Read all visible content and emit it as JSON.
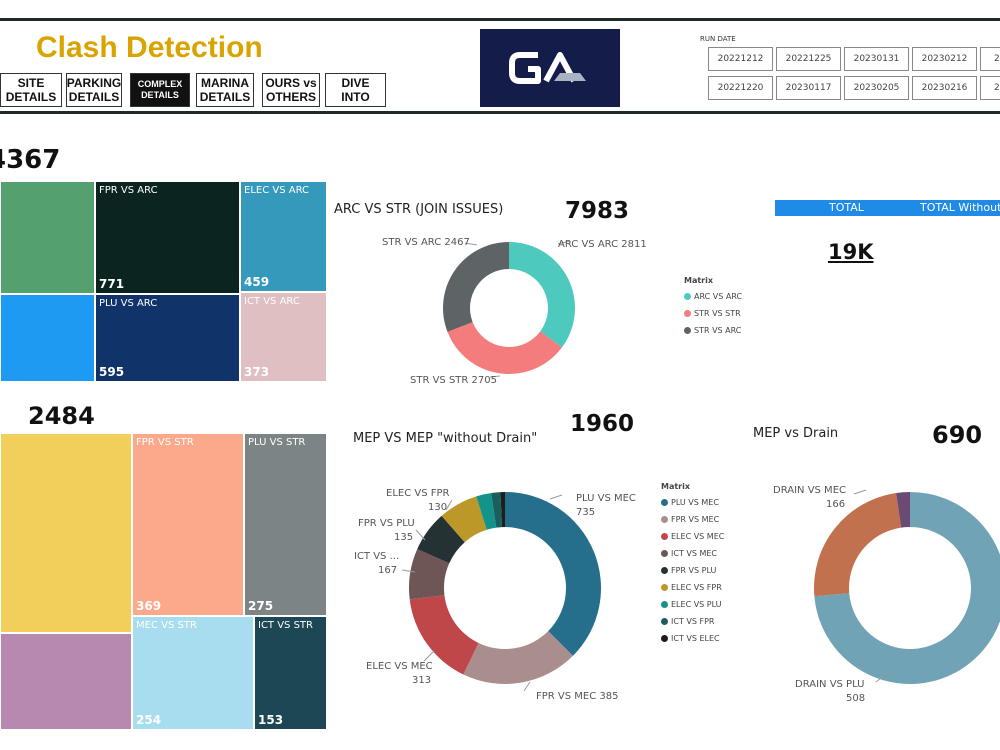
{
  "header": {
    "title": "Clash Detection",
    "nav": [
      {
        "line1": "SITE",
        "line2": "DETAILS",
        "active": false
      },
      {
        "line1": "PARKING",
        "line2": "DETAILS",
        "active": false
      },
      {
        "line1": "COMPLEX",
        "line2": "DETAILS",
        "active": true
      },
      {
        "line1": "MARINA",
        "line2": "DETAILS",
        "active": false
      },
      {
        "line1": "OURS vs",
        "line2": "OTHERS",
        "active": false
      },
      {
        "line1": "DIVE INTO",
        "line2": "",
        "active": false
      }
    ],
    "logo_text": "GA",
    "run_date_label": "RUN DATE",
    "run_dates_row1": [
      "20221212",
      "20221225",
      "20230131",
      "20230212",
      "2"
    ],
    "run_dates_row2": [
      "20221220",
      "20230117",
      "20230205",
      "20230216",
      "2"
    ]
  },
  "arc_section": {
    "total": "4367",
    "treemap": [
      {
        "label": "",
        "value": "",
        "color": "#55a06f"
      },
      {
        "label": "FPR VS ARC",
        "value": "771",
        "color": "#0c2420"
      },
      {
        "label": "ELEC VS ARC",
        "value": "459",
        "color": "#3599bb"
      },
      {
        "label": "",
        "value": "",
        "color": "#1f9af3"
      },
      {
        "label": "PLU VS ARC",
        "value": "595",
        "color": "#10336a"
      },
      {
        "label": "ICT VS ARC",
        "value": "373",
        "color": "#dfbfc1"
      }
    ]
  },
  "str_section": {
    "total": "2484",
    "treemap": [
      {
        "label": "",
        "value": "",
        "color": "#f2cf5a"
      },
      {
        "label": "FPR VS STR",
        "value": "369",
        "color": "#fba98a"
      },
      {
        "label": "PLU VS STR",
        "value": "275",
        "color": "#7d8486"
      },
      {
        "label": "",
        "value": "",
        "color": "#b789b0"
      },
      {
        "label": "MEC VS STR",
        "value": "254",
        "color": "#a7ddee"
      },
      {
        "label": "ICT VS STR",
        "value": "153",
        "color": "#1d4755"
      }
    ]
  },
  "arc_vs_str": {
    "title": "ARC VS STR (JOIN ISSUES)",
    "total": "7983",
    "legend_title": "Matrix",
    "legend": [
      "ARC VS  ARC",
      "STR VS  STR",
      "STR VS  ARC"
    ]
  },
  "totals": {
    "header_left": "TOTAL",
    "header_right": "TOTAL Without",
    "value": "19K"
  },
  "mep_vs_mep": {
    "title": "MEP VS MEP \"without Drain\"",
    "total": "1960",
    "legend_title": "Matrix",
    "legend": [
      "PLU VS  MEC",
      "FPR VS  MEC",
      "ELEC VS  MEC",
      "ICT VS  MEC",
      "FPR VS  PLU",
      "ELEC VS  FPR",
      "ELEC VS  PLU",
      "ICT VS  FPR",
      "ICT VS  ELEC"
    ]
  },
  "mep_vs_drain": {
    "title": "MEP vs Drain",
    "total": "690"
  },
  "colors": {
    "accent_title": "#d9a400",
    "total_bar": "#1f8be6"
  },
  "chart_data": [
    {
      "type": "pie",
      "title": "ARC VS STR (JOIN ISSUES)",
      "categories": [
        "ARC VS ARC",
        "STR VS STR",
        "STR VS ARC"
      ],
      "values": [
        2811,
        2705,
        2467
      ],
      "colors": [
        "#4ec9bd",
        "#f47c7c",
        "#5e6466"
      ]
    },
    {
      "type": "pie",
      "title": "MEP VS MEP \"without Drain\"",
      "categories": [
        "PLU VS MEC",
        "FPR VS MEC",
        "ELEC VS MEC",
        "ICT VS ...",
        "FPR VS PLU",
        "ELEC VS FPR",
        "ELEC VS PLU",
        "ICT VS FPR",
        "ICT VS ELEC"
      ],
      "values": [
        735,
        385,
        313,
        167,
        135,
        130,
        50,
        30,
        15
      ],
      "colors": [
        "#256f8c",
        "#aa8e8e",
        "#c04749",
        "#6e5656",
        "#253234",
        "#bc9829",
        "#13938a",
        "#1a5e5e",
        "#1d1d1d"
      ]
    },
    {
      "type": "pie",
      "title": "MEP vs Drain",
      "categories": [
        "DRAIN VS PLU",
        "DRAIN VS MEC",
        ""
      ],
      "values": [
        508,
        166,
        16
      ],
      "colors": [
        "#6fa3b5",
        "#c2714f",
        "#6b4a74"
      ]
    }
  ],
  "donut_labels": {
    "arc": [
      {
        "text": "ARC VS ARC 2811"
      },
      {
        "text": "STR VS STR 2705"
      },
      {
        "text": "STR VS ARC 2467"
      }
    ],
    "mep": [
      {
        "text1": "PLU VS MEC",
        "text2": "735"
      },
      {
        "text1": "FPR VS MEC 385",
        "text2": ""
      },
      {
        "text1": "ELEC VS MEC",
        "text2": "313"
      },
      {
        "text1": "ICT VS ...",
        "text2": "167"
      },
      {
        "text1": "FPR VS PLU",
        "text2": "135"
      },
      {
        "text1": "ELEC VS FPR",
        "text2": "130"
      }
    ],
    "drain": [
      {
        "text1": "DRAIN VS MEC",
        "text2": "166"
      },
      {
        "text1": "DRAIN VS PLU",
        "text2": "508"
      }
    ]
  }
}
